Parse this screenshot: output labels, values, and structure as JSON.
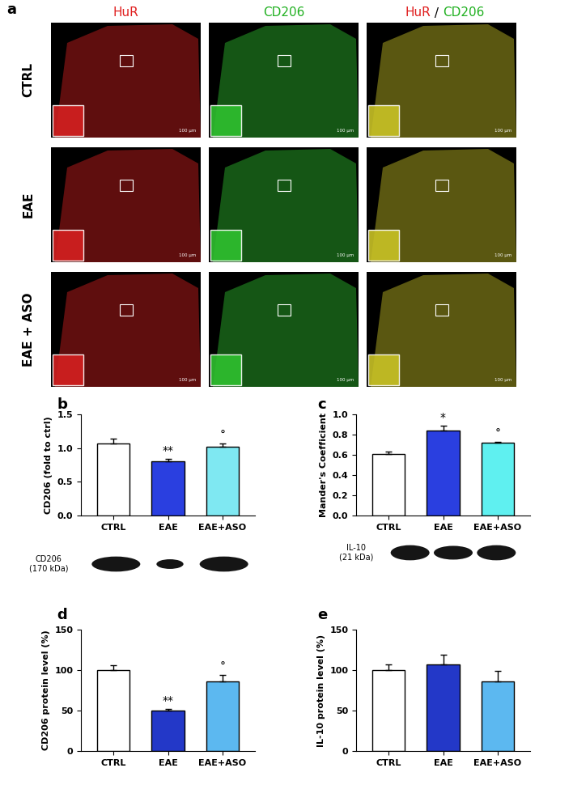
{
  "image_panel": {
    "columns": [
      "HuR",
      "CD206",
      "HuR / CD206"
    ],
    "rows": [
      "CTRL",
      "EAE",
      "EAE + ASO"
    ],
    "scale_bar": "100 μm"
  },
  "panel_labels": [
    "a",
    "b",
    "c",
    "d",
    "e"
  ],
  "blots": [
    {
      "label": "CD206\n(170 kDa)"
    },
    {
      "label": "IL-10\n(21 kDa)"
    }
  ],
  "chart_data": [
    {
      "type": "bar",
      "categories": [
        "CTRL",
        "EAE",
        "EAE+ASO"
      ],
      "values": [
        1.07,
        0.8,
        1.02
      ],
      "errors": [
        0.07,
        0.04,
        0.05
      ],
      "colors": [
        "#ffffff",
        "#2a3fe0",
        "#7fe8f2"
      ],
      "ylabel": "CD206 (fold to ctrl)",
      "ylim": [
        0,
        1.5
      ],
      "yticks": [
        {
          "value": 0,
          "label": "0.0"
        },
        {
          "value": 0.5,
          "label": "0.5"
        },
        {
          "value": 1.0,
          "label": "1.0"
        },
        {
          "value": 1.5,
          "label": "1.5"
        }
      ],
      "annotations": [
        null,
        "**",
        "°"
      ]
    },
    {
      "type": "bar",
      "categories": [
        "CTRL",
        "EAE",
        "EAE+ASO"
      ],
      "values": [
        0.61,
        0.84,
        0.72
      ],
      "errors": [
        0.02,
        0.05,
        0.01
      ],
      "colors": [
        "#ffffff",
        "#2a3fe0",
        "#5ff0f0"
      ],
      "ylabel": "Mander's Coefficient",
      "ylim": [
        0,
        1.0
      ],
      "yticks": [
        {
          "value": 0,
          "label": "0.0"
        },
        {
          "value": 0.2,
          "label": "0.2"
        },
        {
          "value": 0.4,
          "label": "0.4"
        },
        {
          "value": 0.6,
          "label": "0.6"
        },
        {
          "value": 0.8,
          "label": "0.8"
        },
        {
          "value": 1.0,
          "label": "1.0"
        }
      ],
      "annotations": [
        null,
        "*",
        "°"
      ]
    },
    {
      "type": "bar",
      "categories": [
        "CTRL",
        "EAE",
        "EAE+ASO"
      ],
      "values": [
        100,
        50,
        86
      ],
      "errors": [
        6,
        2,
        8
      ],
      "colors": [
        "#ffffff",
        "#2338c8",
        "#5cb8f0"
      ],
      "ylabel": "CD206 protein level (%)",
      "ylim": [
        0,
        150
      ],
      "yticks": [
        0,
        50,
        100,
        150
      ],
      "annotations": [
        null,
        "**",
        "°"
      ]
    },
    {
      "type": "bar",
      "categories": [
        "CTRL",
        "EAE",
        "EAE+ASO"
      ],
      "values": [
        100,
        107,
        86
      ],
      "errors": [
        7,
        12,
        13
      ],
      "colors": [
        "#ffffff",
        "#2338c8",
        "#5cb8f0"
      ],
      "ylabel": "IL-10 protein level (%)",
      "ylim": [
        0,
        150
      ],
      "yticks": [
        0,
        50,
        100,
        150
      ],
      "annotations": [
        null,
        null,
        null
      ]
    }
  ]
}
